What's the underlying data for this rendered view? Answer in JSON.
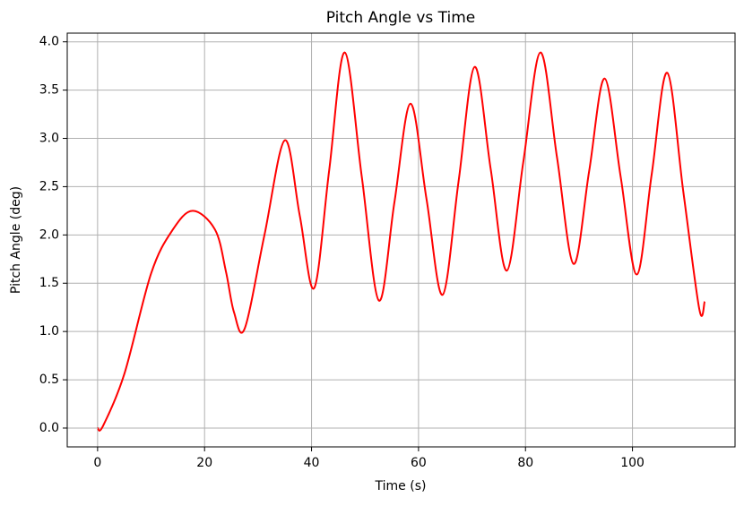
{
  "chart_data": {
    "type": "line",
    "title": "Pitch Angle vs Time",
    "x_label": "Time (s)",
    "y_label": "Pitch Angle (deg)",
    "x": [
      0,
      1,
      5,
      10,
      14,
      17.8,
      22,
      24,
      25.5,
      27.5,
      31.2,
      35,
      37.8,
      40.5,
      43.3,
      46.2,
      49.4,
      52.6,
      55.5,
      58.5,
      61.5,
      64.5,
      67.5,
      70.5,
      73.5,
      76.5,
      79.6,
      82.8,
      85.9,
      89,
      91.9,
      94.8,
      97.8,
      100.8,
      103.6,
      106.5,
      109.5,
      112.5,
      113.5
    ],
    "series": [
      {
        "name": "Pitch Angle",
        "color": "#ff0000",
        "values": [
          0,
          0.02,
          0.56,
          1.6,
          2.05,
          2.25,
          2.05,
          1.62,
          1.2,
          1.03,
          2.0,
          2.98,
          2.2,
          1.45,
          2.67,
          3.89,
          2.6,
          1.32,
          2.34,
          3.36,
          2.37,
          1.38,
          2.56,
          3.74,
          2.68,
          1.63,
          2.76,
          3.89,
          2.8,
          1.7,
          2.66,
          3.62,
          2.6,
          1.59,
          2.63,
          3.68,
          2.45,
          1.23,
          1.31
        ]
      }
    ],
    "xlim": [
      -5.675,
      119.175
    ],
    "ylim": [
      -0.195,
      4.09
    ],
    "xticks": [
      0,
      20,
      40,
      60,
      80,
      100
    ],
    "yticks": [
      {
        "value": 0,
        "label": "0.0"
      },
      0.5,
      {
        "value": 1,
        "label": "1.0"
      },
      1.5,
      {
        "value": 2,
        "label": "2.0"
      },
      2.5,
      {
        "value": 3,
        "label": "3.0"
      },
      3.5,
      {
        "value": 4,
        "label": "4.0"
      }
    ],
    "grid": true
  }
}
